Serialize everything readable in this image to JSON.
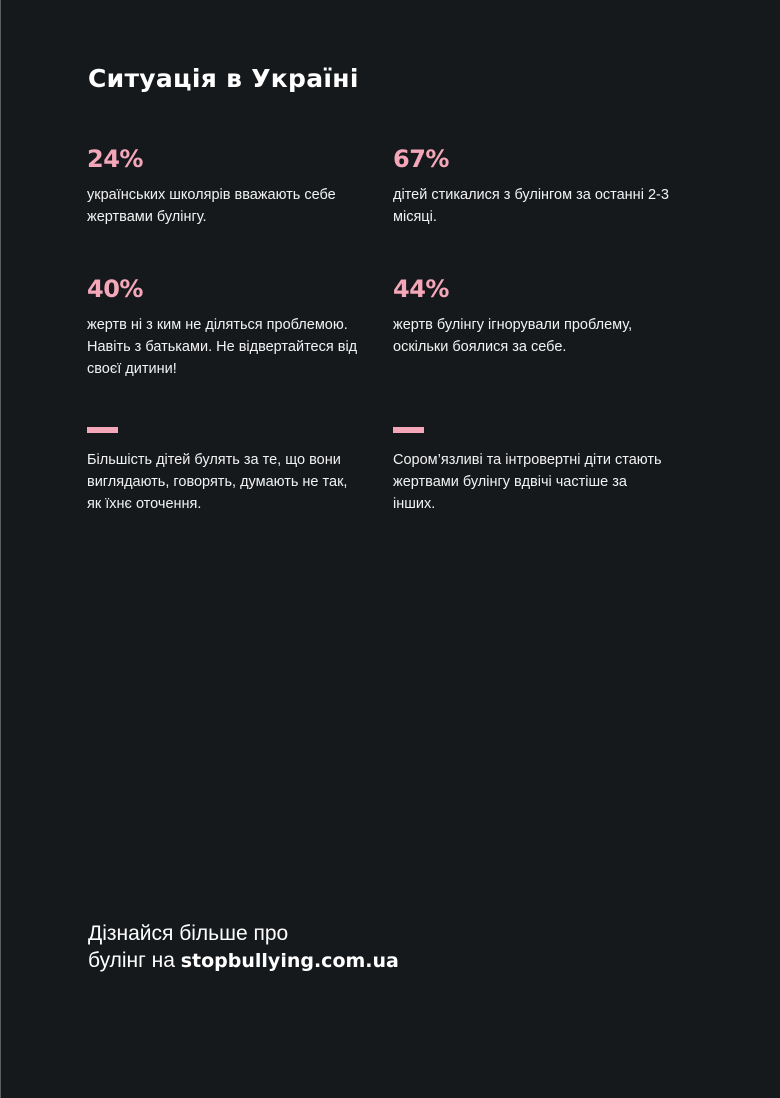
{
  "title": "Ситуація в Україні",
  "colors": {
    "background": "#15191c",
    "accent": "#f4a7b9",
    "text": "#ffffff"
  },
  "stats": [
    {
      "value": "24%",
      "lines": [
        "українських школярів вважають себе",
        "жертвами булінгу."
      ]
    },
    {
      "value": "67%",
      "lines": [
        "дітей стикалися з булінгом за останні 2-3",
        "місяці."
      ]
    },
    {
      "value": "40%",
      "lines": [
        "жертв ні з ким не діляться проблемою.",
        "Навіть з батьками. Не відвертайтеся від",
        "своєї дитини!"
      ]
    },
    {
      "value": "44%",
      "lines": [
        "жертв булінгу ігнорували проблему,",
        "оскільки боялися за себе."
      ]
    }
  ],
  "facts": [
    {
      "lines": [
        "Більшість дітей булять за те, що вони",
        "виглядають, говорять, думають не так,",
        "як їхнє оточення."
      ]
    },
    {
      "lines": [
        "Сором’язливі та інтровертні діти стають",
        "жертвами булінгу вдвічі частіше за",
        "інших."
      ]
    }
  ],
  "footer": {
    "line1": "Дізнайся більше про",
    "line2_prefix": "булінг на ",
    "link": "stopbullying.com.ua"
  }
}
